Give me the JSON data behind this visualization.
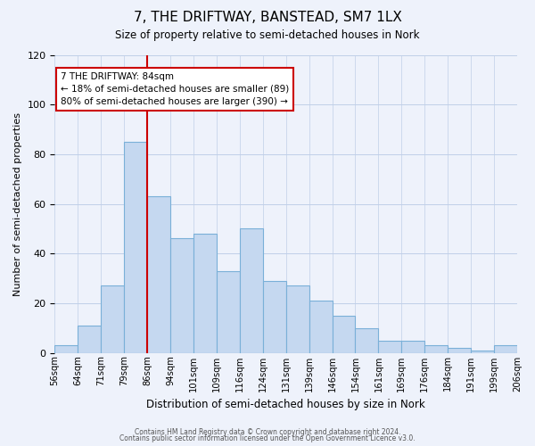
{
  "title": "7, THE DRIFTWAY, BANSTEAD, SM7 1LX",
  "subtitle": "Size of property relative to semi-detached houses in Nork",
  "xlabel": "Distribution of semi-detached houses by size in Nork",
  "ylabel": "Number of semi-detached properties",
  "bin_labels": [
    "56sqm",
    "64sqm",
    "71sqm",
    "79sqm",
    "86sqm",
    "94sqm",
    "101sqm",
    "109sqm",
    "116sqm",
    "124sqm",
    "131sqm",
    "139sqm",
    "146sqm",
    "154sqm",
    "161sqm",
    "169sqm",
    "176sqm",
    "184sqm",
    "191sqm",
    "199sqm",
    "206sqm"
  ],
  "bar_values": [
    3,
    11,
    27,
    85,
    63,
    46,
    48,
    33,
    50,
    29,
    27,
    21,
    15,
    10,
    5,
    5,
    3,
    2,
    1,
    3
  ],
  "bar_color": "#c5d8f0",
  "bar_edge_color": "#7ab0d8",
  "ylim": [
    0,
    120
  ],
  "yticks": [
    0,
    20,
    40,
    60,
    80,
    100,
    120
  ],
  "vline_x": 4,
  "vline_color": "#cc0000",
  "annotation_title": "7 THE DRIFTWAY: 84sqm",
  "annotation_line1": "← 18% of semi-detached houses are smaller (89)",
  "annotation_line2": "80% of semi-detached houses are larger (390) →",
  "annotation_box_color": "#ffffff",
  "annotation_box_edge": "#cc0000",
  "footer_line1": "Contains HM Land Registry data © Crown copyright and database right 2024.",
  "footer_line2": "Contains public sector information licensed under the Open Government Licence v3.0.",
  "background_color": "#eef2fb",
  "plot_background": "#eef2fb"
}
